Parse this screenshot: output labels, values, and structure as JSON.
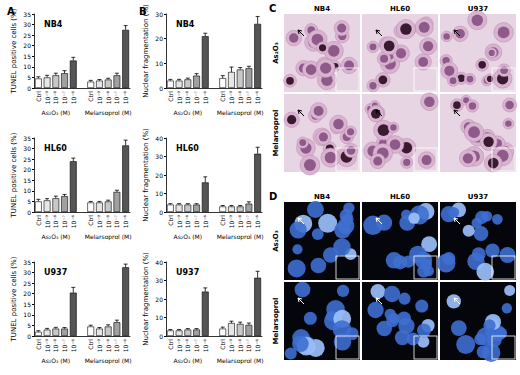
{
  "chart_data": [
    {
      "type": "bar",
      "title": "NB4",
      "annotations": [
        "A"
      ],
      "ylabel": "TUNEL positive cells (%)",
      "categories": [
        "Ctrl",
        "10⁻⁹",
        "10⁻⁸",
        "10⁻⁷",
        "10⁻⁶",
        null,
        "Ctrl",
        "10⁻⁹",
        "10⁻⁸",
        "10⁻⁷",
        "10⁻⁶"
      ],
      "group_labels": [
        "As₂O₃ (M)",
        "Melarsoprol (M)"
      ],
      "values": [
        4.5,
        5,
        6,
        7,
        13,
        null,
        3,
        3.5,
        4,
        6,
        27.5
      ],
      "errors": [
        0.8,
        1,
        1,
        1.2,
        1.5,
        null,
        0.6,
        0.5,
        0.6,
        1,
        2
      ],
      "colors": [
        "#ffffff",
        "#e6e6e6",
        "#c8c8c8",
        "#a0a0a0",
        "#555555",
        null,
        "#ffffff",
        "#e6e6e6",
        "#c8c8c8",
        "#a0a0a0",
        "#555555"
      ],
      "ylim": [
        0,
        35
      ],
      "yticks": [
        0,
        5,
        10,
        15,
        20,
        25,
        30,
        35
      ]
    },
    {
      "type": "bar",
      "title": "HL60",
      "ylabel": "TUNEL positive cells (%)",
      "categories": [
        "Ctrl",
        "10⁻⁹",
        "10⁻⁸",
        "10⁻⁷",
        "10⁻⁶",
        null,
        "Ctrl",
        "10⁻⁹",
        "10⁻⁸",
        "10⁻⁷",
        "10⁻⁶"
      ],
      "group_labels": [
        "As₂O₃ (M)",
        "Melarsoprol (M)"
      ],
      "values": [
        5,
        5.5,
        6.5,
        7.5,
        24,
        null,
        4.5,
        4.5,
        5,
        9.5,
        31.5
      ],
      "errors": [
        1,
        0.8,
        1,
        0.8,
        1.5,
        null,
        0.5,
        0.5,
        0.6,
        0.8,
        2.5
      ],
      "colors": [
        "#ffffff",
        "#e6e6e6",
        "#c8c8c8",
        "#a0a0a0",
        "#555555",
        null,
        "#ffffff",
        "#e6e6e6",
        "#c8c8c8",
        "#a0a0a0",
        "#555555"
      ],
      "ylim": [
        0,
        35
      ],
      "yticks": [
        0,
        5,
        10,
        15,
        20,
        25,
        30,
        35
      ]
    },
    {
      "type": "bar",
      "title": "U937",
      "ylabel": "TUNEL positive cells (%)",
      "categories": [
        "Ctrl",
        "10⁻⁹",
        "10⁻⁸",
        "10⁻⁷",
        "10⁻⁶",
        null,
        "Ctrl",
        "10⁻⁹",
        "10⁻⁸",
        "10⁻⁷",
        "10⁻⁶"
      ],
      "group_labels": [
        "As₂O₃ (M)",
        "Melarsoprol (M)"
      ],
      "values": [
        2,
        3,
        3.5,
        3.5,
        20.5,
        null,
        4.5,
        3.5,
        4.5,
        6.5,
        32.5
      ],
      "errors": [
        0.5,
        0.6,
        0.6,
        0.5,
        2.5,
        null,
        0.6,
        0.5,
        0.8,
        1,
        1.5
      ],
      "colors": [
        "#ffffff",
        "#e6e6e6",
        "#c8c8c8",
        "#a0a0a0",
        "#555555",
        null,
        "#ffffff",
        "#e6e6e6",
        "#c8c8c8",
        "#a0a0a0",
        "#555555"
      ],
      "ylim": [
        0,
        35
      ],
      "yticks": [
        0,
        5,
        10,
        15,
        20,
        25,
        30,
        35
      ]
    },
    {
      "type": "bar",
      "title": "NB4",
      "annotations": [
        "B"
      ],
      "ylabel": "Nuclear fragmentation (%)",
      "categories": [
        "Ctrl",
        "10⁻⁹",
        "10⁻⁸",
        "10⁻⁷",
        "10⁻⁶",
        null,
        "Ctrl",
        "10⁻⁹",
        "10⁻⁸",
        "10⁻⁷",
        "10⁻⁶"
      ],
      "group_labels": [
        "As₂O₃ (M)",
        "Melarsoprol (M)"
      ],
      "values": [
        3,
        3,
        3.5,
        5,
        21,
        null,
        4,
        6.5,
        7.5,
        8,
        26
      ],
      "errors": [
        0.5,
        0.5,
        0.5,
        0.8,
        1.2,
        null,
        1,
        2,
        0.8,
        0.8,
        3
      ],
      "colors": [
        "#ffffff",
        "#e6e6e6",
        "#c8c8c8",
        "#a0a0a0",
        "#555555",
        null,
        "#ffffff",
        "#e6e6e6",
        "#c8c8c8",
        "#a0a0a0",
        "#555555"
      ],
      "ylim": [
        0,
        30
      ],
      "yticks": [
        0,
        10,
        20,
        30
      ]
    },
    {
      "type": "bar",
      "title": "HL60",
      "ylabel": "Nuclear fragmentation (%)",
      "categories": [
        "Ctrl",
        "10⁻⁹",
        "10⁻⁸",
        "10⁻⁷",
        "10⁻⁶",
        null,
        "Ctrl",
        "10⁻⁹",
        "10⁻⁸",
        "10⁻⁷",
        "10⁻⁶"
      ],
      "group_labels": [
        "As₂O₃ (M)",
        "Melarsoprol (M)"
      ],
      "values": [
        4,
        4,
        4,
        4,
        16,
        null,
        3,
        3,
        3,
        4.5,
        31.5
      ],
      "errors": [
        0.5,
        0.5,
        0.5,
        0.5,
        3,
        null,
        0.5,
        0.5,
        0.5,
        1,
        3.5
      ],
      "colors": [
        "#ffffff",
        "#e6e6e6",
        "#c8c8c8",
        "#a0a0a0",
        "#555555",
        null,
        "#ffffff",
        "#e6e6e6",
        "#c8c8c8",
        "#a0a0a0",
        "#555555"
      ],
      "ylim": [
        0,
        40
      ],
      "yticks": [
        0,
        10,
        20,
        30,
        40
      ]
    },
    {
      "type": "bar",
      "title": "U937",
      "ylabel": "Nuclear fragmentation (%)",
      "categories": [
        "Ctrl",
        "10⁻⁹",
        "10⁻⁸",
        "10⁻⁷",
        "10⁻⁶",
        null,
        "Ctrl",
        "10⁻⁹",
        "10⁻⁸",
        "10⁻⁷",
        "10⁻⁶"
      ],
      "group_labels": [
        "As₂O₃ (M)",
        "Melarsoprol (M)"
      ],
      "values": [
        3,
        3,
        3.5,
        3.5,
        24,
        null,
        4,
        7,
        6.5,
        6,
        31.5
      ],
      "errors": [
        0.5,
        0.5,
        0.5,
        0.5,
        2,
        null,
        0.8,
        1,
        1,
        1,
        3.5
      ],
      "colors": [
        "#ffffff",
        "#e6e6e6",
        "#c8c8c8",
        "#a0a0a0",
        "#555555",
        null,
        "#ffffff",
        "#e6e6e6",
        "#c8c8c8",
        "#a0a0a0",
        "#555555"
      ],
      "ylim": [
        0,
        40
      ],
      "yticks": [
        0,
        10,
        20,
        30,
        40
      ]
    }
  ],
  "image_panels": [
    {
      "label": "C",
      "columns": [
        "NB4",
        "HL60",
        "U937"
      ],
      "rows": [
        "As₂O₃",
        "Melarsoprol"
      ]
    },
    {
      "label": "D",
      "columns": [
        "NB4",
        "HL60",
        "U937"
      ],
      "rows": [
        "As₂O₃",
        "Melarsoprol"
      ]
    }
  ]
}
